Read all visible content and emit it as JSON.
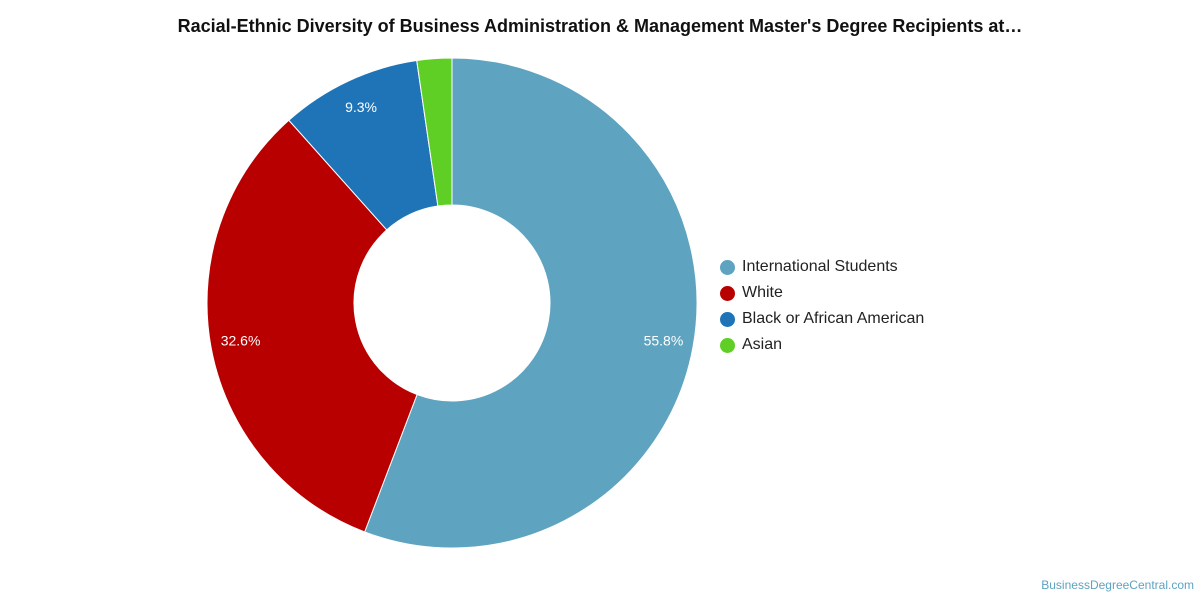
{
  "chart_data": {
    "type": "pie",
    "variant": "donut",
    "title": "Racial-Ethnic Diversity of Business Administration & Management Master's Degree Recipients at…",
    "labels": [
      "International Students",
      "White",
      "Black or African American",
      "Asian"
    ],
    "values": [
      55.8,
      32.6,
      9.3,
      2.3
    ],
    "data_labels": [
      "55.8%",
      "32.6%",
      "9.3%",
      ""
    ],
    "colors": [
      "#5ea3c0",
      "#b90000",
      "#1f74b8",
      "#60cf25"
    ],
    "legend_position": "right"
  },
  "credit": "BusinessDegreeCentral.com"
}
